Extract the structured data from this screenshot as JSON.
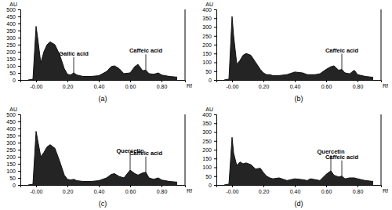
{
  "chart_data": [
    {
      "type": "area",
      "title": "(a)",
      "x_label": "Rf",
      "y_label": "AU",
      "color": "#111111",
      "x": [
        -0.05,
        -0.02,
        0.0,
        0.01,
        0.03,
        0.05,
        0.07,
        0.09,
        0.12,
        0.15,
        0.18,
        0.2,
        0.22,
        0.24,
        0.26,
        0.3,
        0.35,
        0.4,
        0.45,
        0.48,
        0.5,
        0.53,
        0.56,
        0.6,
        0.63,
        0.65,
        0.68,
        0.7,
        0.72,
        0.75,
        0.78,
        0.8,
        0.85,
        0.9
      ],
      "values": [
        0,
        5,
        380,
        300,
        120,
        200,
        250,
        270,
        250,
        180,
        80,
        40,
        35,
        50,
        35,
        25,
        25,
        30,
        60,
        95,
        100,
        80,
        45,
        50,
        95,
        110,
        65,
        70,
        45,
        40,
        50,
        35,
        25,
        20
      ],
      "xlim": [
        -0.1,
        0.95
      ],
      "xticks": [
        {
          "value": 0,
          "label": "-0.00"
        },
        {
          "value": 0.2,
          "label": "0.20"
        },
        {
          "value": 0.4,
          "label": "0.40"
        },
        {
          "value": 0.6,
          "label": "0.60"
        },
        {
          "value": 0.8,
          "label": "0.80"
        }
      ],
      "ylim": [
        0,
        500
      ],
      "yticks": [
        0,
        50,
        100,
        150,
        200,
        250,
        300,
        350,
        400,
        450,
        500
      ],
      "annotations": [
        {
          "text": "Gallic acid",
          "x": 0.24,
          "y": 50
        },
        {
          "text": "Caffeic acid",
          "x": 0.7,
          "y": 70
        }
      ]
    },
    {
      "type": "area",
      "title": "(b)",
      "x_label": "Rf",
      "y_label": "AU",
      "color": "#111111",
      "x": [
        -0.05,
        -0.02,
        0.0,
        0.01,
        0.03,
        0.05,
        0.07,
        0.09,
        0.12,
        0.15,
        0.18,
        0.2,
        0.22,
        0.24,
        0.26,
        0.3,
        0.35,
        0.4,
        0.45,
        0.48,
        0.5,
        0.53,
        0.56,
        0.6,
        0.63,
        0.65,
        0.68,
        0.7,
        0.72,
        0.75,
        0.78,
        0.8,
        0.85,
        0.9
      ],
      "values": [
        0,
        5,
        360,
        250,
        90,
        110,
        140,
        150,
        140,
        100,
        60,
        40,
        30,
        30,
        25,
        25,
        30,
        45,
        40,
        30,
        30,
        30,
        35,
        60,
        75,
        80,
        55,
        60,
        40,
        35,
        55,
        30,
        20,
        15
      ],
      "xlim": [
        -0.1,
        0.95
      ],
      "xticks": [
        {
          "value": 0,
          "label": "-0.00"
        },
        {
          "value": 0.2,
          "label": "0.20"
        },
        {
          "value": 0.4,
          "label": "0.40"
        },
        {
          "value": 0.6,
          "label": "0.60"
        },
        {
          "value": 0.8,
          "label": "0.80"
        }
      ],
      "ylim": [
        0,
        400
      ],
      "yticks": [
        0,
        50,
        100,
        150,
        200,
        250,
        300,
        350,
        400
      ],
      "annotations": [
        {
          "text": "Caffeic acid",
          "x": 0.7,
          "y": 60
        }
      ]
    },
    {
      "type": "area",
      "title": "(c)",
      "x_label": "Rf",
      "y_label": "AU",
      "color": "#111111",
      "x": [
        -0.05,
        -0.02,
        0.0,
        0.01,
        0.03,
        0.05,
        0.07,
        0.09,
        0.12,
        0.15,
        0.18,
        0.2,
        0.22,
        0.24,
        0.26,
        0.3,
        0.35,
        0.4,
        0.45,
        0.48,
        0.5,
        0.53,
        0.56,
        0.6,
        0.63,
        0.65,
        0.68,
        0.7,
        0.72,
        0.75,
        0.78,
        0.8,
        0.85,
        0.9
      ],
      "values": [
        0,
        5,
        380,
        320,
        200,
        230,
        270,
        285,
        260,
        170,
        70,
        40,
        35,
        40,
        30,
        25,
        25,
        30,
        50,
        75,
        80,
        60,
        50,
        105,
        80,
        70,
        85,
        90,
        50,
        40,
        50,
        35,
        25,
        20
      ],
      "xlim": [
        -0.1,
        0.95
      ],
      "xticks": [
        {
          "value": 0,
          "label": "-0.00"
        },
        {
          "value": 0.2,
          "label": "0.20"
        },
        {
          "value": 0.4,
          "label": "0.40"
        },
        {
          "value": 0.6,
          "label": "0.60"
        },
        {
          "value": 0.8,
          "label": "0.80"
        }
      ],
      "ylim": [
        0,
        500
      ],
      "yticks": [
        0,
        50,
        100,
        150,
        200,
        250,
        300,
        350,
        400,
        450,
        500
      ],
      "annotations": [
        {
          "text": "Quercetin",
          "x": 0.6,
          "y": 105
        },
        {
          "text": "Caffeic acid",
          "x": 0.7,
          "y": 90
        }
      ]
    },
    {
      "type": "area",
      "title": "(d)",
      "x_label": "Rf",
      "y_label": "AU",
      "color": "#111111",
      "x": [
        -0.05,
        -0.02,
        0.0,
        0.01,
        0.03,
        0.05,
        0.07,
        0.09,
        0.12,
        0.15,
        0.18,
        0.2,
        0.22,
        0.24,
        0.26,
        0.3,
        0.35,
        0.4,
        0.45,
        0.48,
        0.5,
        0.53,
        0.56,
        0.6,
        0.63,
        0.65,
        0.68,
        0.7,
        0.72,
        0.75,
        0.78,
        0.8,
        0.85,
        0.9
      ],
      "values": [
        0,
        5,
        270,
        180,
        110,
        130,
        120,
        125,
        115,
        90,
        95,
        70,
        50,
        40,
        35,
        40,
        25,
        35,
        30,
        25,
        35,
        30,
        25,
        60,
        80,
        55,
        45,
        50,
        35,
        40,
        40,
        35,
        25,
        20
      ],
      "xlim": [
        -0.1,
        0.95
      ],
      "xticks": [
        {
          "value": 0,
          "label": "-0.00"
        },
        {
          "value": 0.2,
          "label": "0.20"
        },
        {
          "value": 0.4,
          "label": "0.40"
        },
        {
          "value": 0.6,
          "label": "0.60"
        },
        {
          "value": 0.8,
          "label": "0.80"
        }
      ],
      "ylim": [
        0,
        400
      ],
      "yticks": [
        0,
        50,
        100,
        150,
        200,
        250,
        300,
        350,
        400
      ],
      "annotations": [
        {
          "text": "Quercetin",
          "x": 0.63,
          "y": 80
        },
        {
          "text": "Caffeic acid",
          "x": 0.7,
          "y": 50
        }
      ]
    }
  ]
}
